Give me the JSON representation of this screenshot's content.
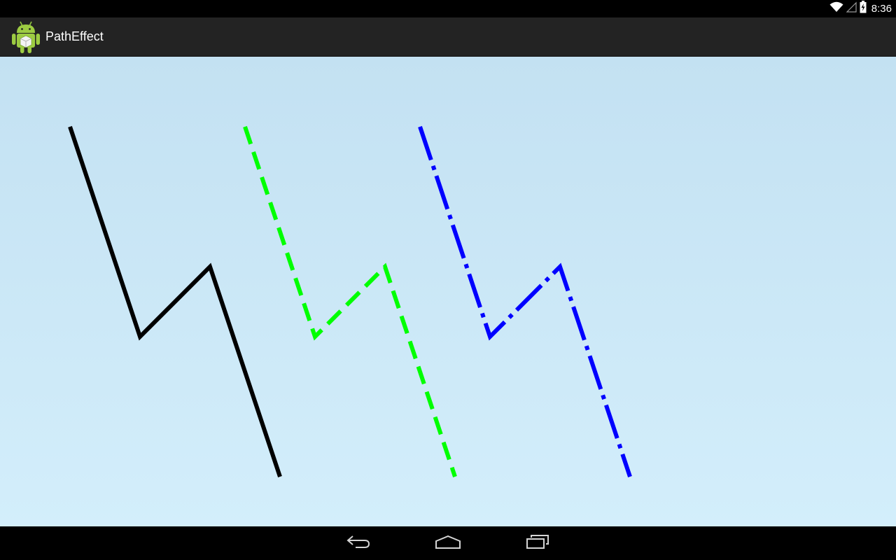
{
  "status_bar": {
    "time": "8:36",
    "icons": [
      "wifi-icon",
      "cell-signal-icon",
      "battery-charging-icon"
    ]
  },
  "action_bar": {
    "app_icon": "android-robot-icon",
    "title": "PathEffect"
  },
  "content": {
    "background_top": "#c3e1f2",
    "background_bottom": "#d3eefb",
    "paths": [
      {
        "name": "solid-path",
        "color": "#000000",
        "style": "solid"
      },
      {
        "name": "dashed-path",
        "color": "#00ff00",
        "style": "dashed"
      },
      {
        "name": "dash-dot-path",
        "color": "#0000ff",
        "style": "dash-dot"
      }
    ]
  },
  "navigation_bar": {
    "buttons": [
      "back-icon",
      "home-icon",
      "recent-apps-icon"
    ]
  }
}
